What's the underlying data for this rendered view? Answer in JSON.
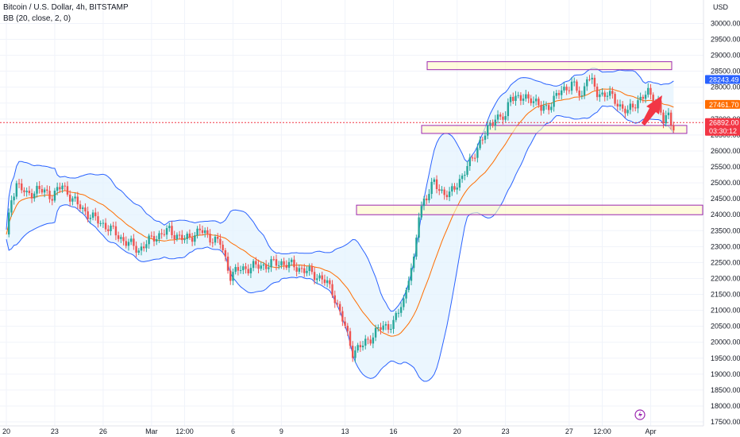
{
  "header": {
    "title": "Bitcoin / U.S. Dollar, 4h, BITSTAMP",
    "indicator": "BB (20, close, 2, 0)"
  },
  "axis": {
    "currency": "USD",
    "y_ticks": [
      "30000.00",
      "29500.00",
      "29000.00",
      "28500.00",
      "28000.00",
      "27500.00",
      "27000.00",
      "26500.00",
      "26000.00",
      "25500.00",
      "25000.00",
      "24500.00",
      "24000.00",
      "23500.00",
      "23000.00",
      "22500.00",
      "22000.00",
      "21500.00",
      "21000.00",
      "20500.00",
      "20000.00",
      "19500.00",
      "19000.00",
      "18500.00",
      "18000.00",
      "17500.00"
    ],
    "x_ticks": [
      "20",
      "23",
      "26",
      "Mar",
      "12:00",
      "6",
      "9",
      "13",
      "16",
      "20",
      "23",
      "27",
      "12:00",
      "Apr"
    ]
  },
  "price_tags": {
    "upper_band": "28243.49",
    "middle_band": "27461.70",
    "last_price": "26892.00",
    "countdown": "03:30:12",
    "lower_band": "26679.91"
  },
  "colors": {
    "up": "#26a69a",
    "down": "#ef5350",
    "bb_band": "#2962ff",
    "bb_basis": "#ff6d00",
    "bb_fill": "#e3f2fd",
    "zone_fill": "#fff9c4",
    "zone_stroke": "#9c27b0",
    "arrow": "#f23645",
    "last_price_bg": "#f23645",
    "upper_tag_bg": "#2962ff",
    "middle_tag_bg": "#ff6d00"
  },
  "chart_data": {
    "type": "candlestick",
    "symbol": "BTCUSD",
    "timeframe": "4h",
    "ylim": [
      17500,
      30000
    ],
    "x_labels": [
      "20",
      "23",
      "26",
      "Mar",
      "12:00",
      "6",
      "9",
      "13",
      "16",
      "20",
      "23",
      "27",
      "12:00",
      "Apr"
    ],
    "x_label_positions": [
      0.0,
      19,
      38,
      57,
      70,
      89,
      108,
      133,
      152,
      177,
      196,
      221,
      234,
      253
    ],
    "segments": [
      [
        0,
        23300
      ],
      [
        2,
        24500
      ],
      [
        4,
        25000
      ],
      [
        8,
        24600
      ],
      [
        12,
        24800
      ],
      [
        18,
        24600
      ],
      [
        22,
        24900
      ],
      [
        28,
        24300
      ],
      [
        34,
        23900
      ],
      [
        40,
        23600
      ],
      [
        46,
        23200
      ],
      [
        52,
        22900
      ],
      [
        58,
        23300
      ],
      [
        64,
        23500
      ],
      [
        70,
        23200
      ],
      [
        76,
        23500
      ],
      [
        84,
        23100
      ],
      [
        88,
        22100
      ],
      [
        92,
        22300
      ],
      [
        100,
        22400
      ],
      [
        108,
        22500
      ],
      [
        116,
        22300
      ],
      [
        124,
        22000
      ],
      [
        128,
        21600
      ],
      [
        132,
        20700
      ],
      [
        136,
        19700
      ],
      [
        140,
        19900
      ],
      [
        146,
        20400
      ],
      [
        152,
        20600
      ],
      [
        156,
        21300
      ],
      [
        158,
        22100
      ],
      [
        160,
        22500
      ],
      [
        162,
        24000
      ],
      [
        164,
        24500
      ],
      [
        166,
        24700
      ],
      [
        168,
        25000
      ],
      [
        170,
        24800
      ],
      [
        174,
        24600
      ],
      [
        178,
        25100
      ],
      [
        182,
        25600
      ],
      [
        186,
        26300
      ],
      [
        188,
        26500
      ],
      [
        192,
        27100
      ],
      [
        196,
        27000
      ],
      [
        198,
        27800
      ],
      [
        202,
        27600
      ],
      [
        206,
        27700
      ],
      [
        210,
        27300
      ],
      [
        214,
        27500
      ],
      [
        218,
        27900
      ],
      [
        222,
        28100
      ],
      [
        226,
        27700
      ],
      [
        228,
        28400
      ],
      [
        232,
        27800
      ],
      [
        236,
        27800
      ],
      [
        240,
        27500
      ],
      [
        244,
        27200
      ],
      [
        248,
        27600
      ],
      [
        252,
        27800
      ],
      [
        256,
        27500
      ],
      [
        258,
        26900
      ],
      [
        260,
        27100
      ],
      [
        262,
        26800
      ]
    ],
    "zones": [
      {
        "from": 28550,
        "to": 28800
      },
      {
        "from": 26550,
        "to": 26800
      },
      {
        "from": 24000,
        "to": 24300
      }
    ],
    "bb": {
      "period": 20,
      "source": "close",
      "stddev": 2,
      "offset": 0,
      "upper_last": 28243.49,
      "basis_last": 27461.7,
      "lower_last": 26679.91
    },
    "last_price": 26892.0
  }
}
